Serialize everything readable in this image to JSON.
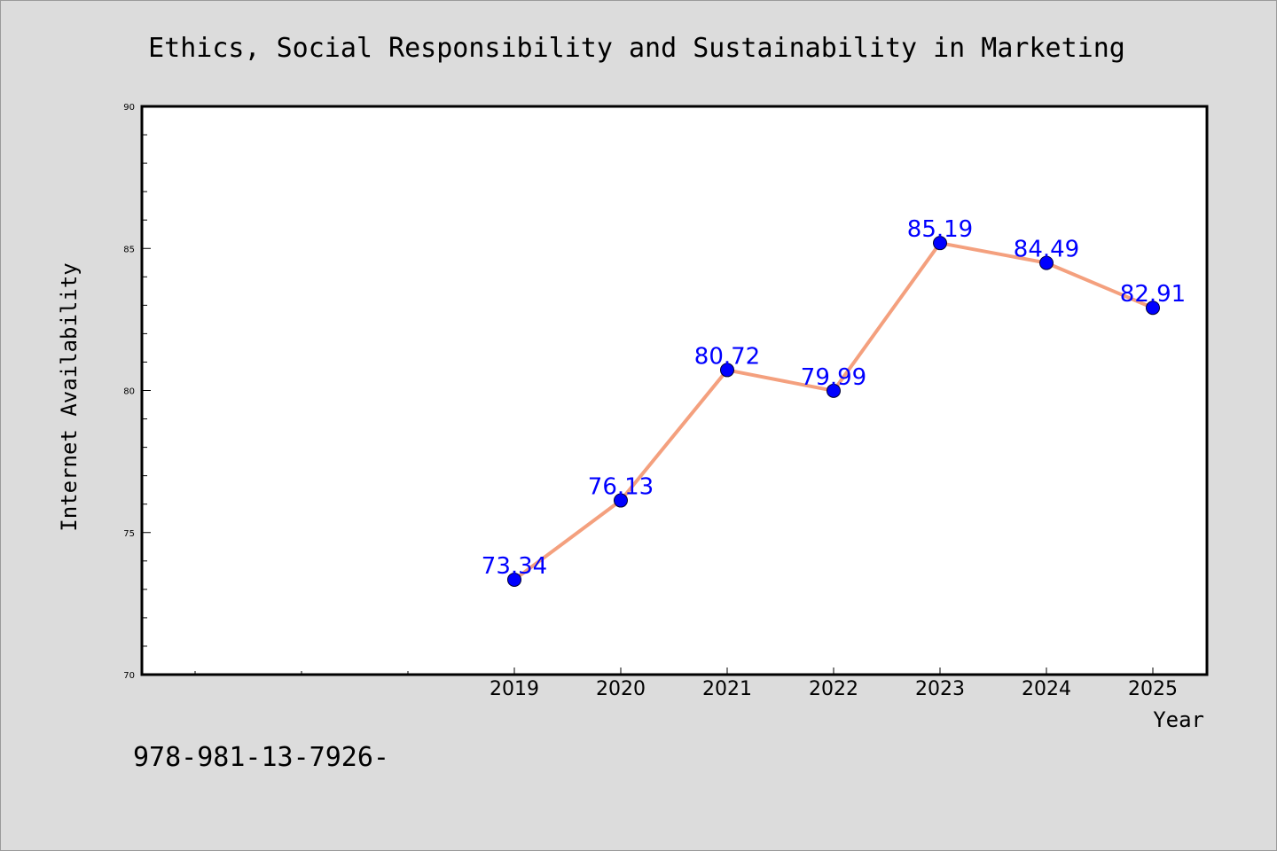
{
  "chart_data": {
    "type": "line",
    "title": "Ethics, Social Responsibility and Sustainability in Marketing",
    "xlabel": "Year",
    "ylabel": "Internet Availability",
    "x": [
      "2019",
      "2020",
      "2021",
      "2022",
      "2023",
      "2024",
      "2025"
    ],
    "series": [
      {
        "values": [
          73.34,
          76.13,
          80.72,
          79.99,
          85.19,
          84.49,
          82.91
        ],
        "labels": [
          "73.34",
          "76.13",
          "80.72",
          "79.99",
          "85.19",
          "84.49",
          "82.91"
        ]
      }
    ],
    "ylim": [
      70,
      90
    ],
    "yticks": [
      "70",
      "75",
      "80",
      "85",
      "90"
    ],
    "grid": false,
    "line_color": "#f4a07e",
    "marker_color": "#0000ff",
    "label_color": "#0000ff",
    "background_color": "#dcdcdc",
    "plot_background": "#ffffff"
  },
  "footer_text": "978-981-13-7926-"
}
